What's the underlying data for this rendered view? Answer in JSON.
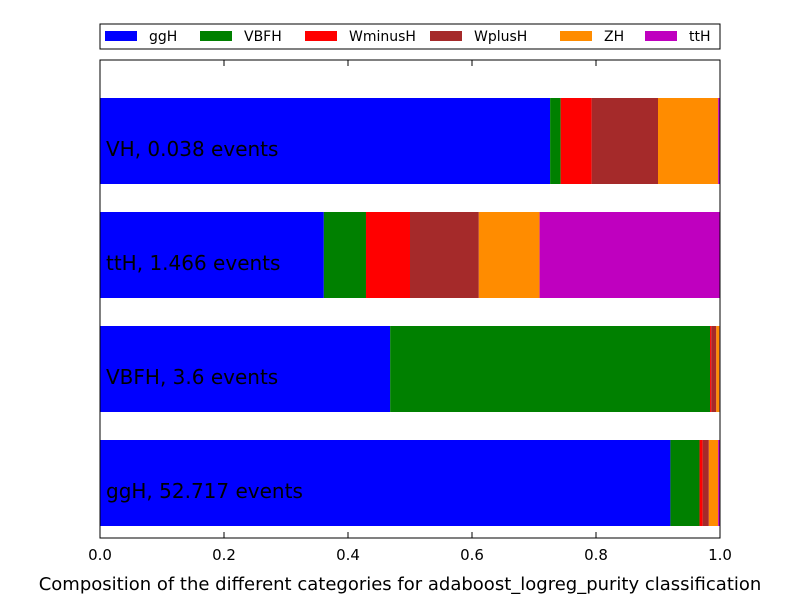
{
  "chart_data": {
    "type": "bar",
    "orientation": "horizontal",
    "stacked": true,
    "xlabel": "Composition of the different categories for adaboost_logreg_purity classification",
    "ylabel": "",
    "xlim": [
      0,
      1.0
    ],
    "xticks": [
      "0.0",
      "0.2",
      "0.4",
      "0.6",
      "0.8",
      "1.0"
    ],
    "grid": false,
    "legend_position": "top",
    "categories": [
      "ggH, 52.717 events",
      "VBFH, 3.6 events",
      "ttH, 1.466 events",
      "VH, 0.038 events"
    ],
    "series": [
      {
        "name": "ggH",
        "color": "#0000ff",
        "values": [
          0.92,
          0.468,
          0.361,
          0.726
        ]
      },
      {
        "name": "VBFH",
        "color": "#008000",
        "values": [
          0.047,
          0.516,
          0.068,
          0.017
        ]
      },
      {
        "name": "WminusH",
        "color": "#ff0000",
        "values": [
          0.005,
          0.002,
          0.071,
          0.05
        ]
      },
      {
        "name": "WplusH",
        "color": "#a52a2a",
        "values": [
          0.01,
          0.008,
          0.111,
          0.107
        ]
      },
      {
        "name": "ZH",
        "color": "#ff8c00",
        "values": [
          0.015,
          0.005,
          0.098,
          0.097
        ]
      },
      {
        "name": "ttH",
        "color": "#bf00bf",
        "values": [
          0.003,
          0.001,
          0.291,
          0.003
        ]
      }
    ]
  }
}
